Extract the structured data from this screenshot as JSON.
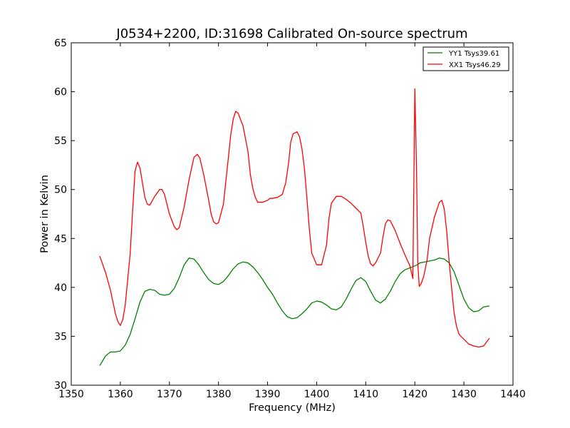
{
  "chart_data": {
    "type": "line",
    "title": "J0534+2200, ID:31698 Calibrated On-source spectrum",
    "xlabel": "Frequency (MHz)",
    "ylabel": "Power in Kelvin",
    "xlim": [
      1350,
      1440
    ],
    "ylim": [
      30,
      65
    ],
    "xticks": [
      1350,
      1360,
      1370,
      1380,
      1390,
      1400,
      1410,
      1420,
      1430,
      1440
    ],
    "yticks": [
      30,
      35,
      40,
      45,
      50,
      55,
      60,
      65
    ],
    "grid": false,
    "legend_position": "top-right",
    "series": [
      {
        "name": "YY1 Tsys39.61",
        "color": "#008000",
        "x": [
          1355.8,
          1357,
          1358,
          1359,
          1360,
          1361,
          1362,
          1363,
          1364,
          1365,
          1366,
          1367,
          1368,
          1369,
          1370,
          1371,
          1372,
          1373,
          1374,
          1375,
          1376,
          1377,
          1378,
          1379,
          1380,
          1381,
          1382,
          1383,
          1384,
          1385,
          1386,
          1387,
          1388,
          1389,
          1390,
          1391,
          1392,
          1393,
          1394,
          1395,
          1396,
          1397,
          1398,
          1399,
          1400,
          1401,
          1402,
          1403,
          1404,
          1405,
          1406,
          1407,
          1408,
          1409,
          1410,
          1411,
          1412,
          1413,
          1414,
          1415,
          1416,
          1417,
          1418,
          1419,
          1420,
          1420.5,
          1421,
          1422,
          1423,
          1424,
          1425,
          1426,
          1427,
          1428,
          1429,
          1430,
          1431,
          1432,
          1433,
          1434,
          1435.2
        ],
        "values": [
          32.0,
          33.0,
          33.4,
          33.4,
          33.5,
          34.1,
          35.2,
          36.8,
          38.5,
          39.6,
          39.8,
          39.7,
          39.3,
          39.2,
          39.3,
          39.9,
          41.0,
          42.3,
          43.0,
          42.9,
          42.3,
          41.5,
          40.8,
          40.4,
          40.3,
          40.6,
          41.2,
          41.9,
          42.4,
          42.6,
          42.5,
          42.1,
          41.5,
          40.8,
          40.0,
          39.3,
          38.4,
          37.6,
          37.0,
          36.8,
          36.9,
          37.3,
          37.8,
          38.4,
          38.6,
          38.5,
          38.2,
          37.8,
          37.7,
          38.0,
          38.8,
          39.8,
          40.7,
          41.0,
          40.6,
          39.6,
          38.7,
          38.4,
          38.8,
          39.6,
          40.6,
          41.4,
          41.8,
          42.0,
          42.2,
          42.3,
          42.5,
          42.6,
          42.7,
          42.8,
          43.0,
          42.9,
          42.5,
          41.6,
          40.2,
          38.8,
          37.9,
          37.5,
          37.6,
          38.0,
          38.1
        ]
      },
      {
        "name": "XX1 Tsys46.29",
        "color": "#ff0000",
        "x": [
          1355.8,
          1357,
          1358,
          1359,
          1359.5,
          1360,
          1360.5,
          1361,
          1362,
          1362.5,
          1363,
          1363.5,
          1364,
          1364.5,
          1365,
          1365.5,
          1366,
          1367,
          1368,
          1368.5,
          1369,
          1370,
          1371,
          1371.5,
          1372,
          1373,
          1374,
          1375,
          1375.7,
          1376.2,
          1377,
          1378,
          1378.5,
          1379,
          1379.5,
          1380,
          1381,
          1382,
          1382.5,
          1383,
          1383.5,
          1384,
          1385,
          1386,
          1386.5,
          1387,
          1387.5,
          1388,
          1389,
          1390,
          1390.5,
          1391,
          1392,
          1393,
          1393.7,
          1394.3,
          1394.7,
          1395.2,
          1396,
          1396.5,
          1397,
          1397.5,
          1398,
          1398.5,
          1399,
          1400,
          1401,
          1402,
          1402.5,
          1403,
          1404,
          1405,
          1406,
          1407,
          1408,
          1409,
          1409.5,
          1410,
          1410.5,
          1411,
          1411.5,
          1412,
          1413,
          1413.5,
          1414,
          1414.5,
          1415,
          1416,
          1417,
          1418,
          1419,
          1419.6,
          1420,
          1420.35,
          1420.6,
          1420.9,
          1421.3,
          1421.8,
          1422.5,
          1423,
          1424,
          1425,
          1425.5,
          1426,
          1426.5,
          1427,
          1427.5,
          1428,
          1428.5,
          1429,
          1430,
          1431,
          1432,
          1433,
          1434,
          1435.2
        ],
        "values": [
          43.2,
          41.5,
          39.7,
          37.3,
          36.5,
          36.1,
          36.7,
          38.2,
          43.4,
          47.8,
          51.9,
          52.8,
          52.2,
          50.7,
          49.2,
          48.5,
          48.4,
          49.3,
          50.0,
          50.0,
          49.5,
          47.5,
          46.2,
          45.9,
          46.1,
          48.2,
          51.0,
          53.3,
          53.6,
          53.2,
          51.5,
          48.9,
          47.5,
          46.7,
          46.5,
          46.6,
          48.5,
          53.2,
          55.6,
          57.2,
          58.0,
          57.8,
          56.5,
          53.9,
          51.5,
          50.1,
          49.2,
          48.7,
          48.7,
          48.9,
          49.1,
          49.1,
          49.2,
          49.5,
          50.7,
          52.8,
          54.8,
          55.7,
          55.9,
          55.4,
          54.2,
          52.2,
          49.2,
          46.0,
          43.5,
          42.3,
          42.3,
          44.3,
          47.0,
          48.6,
          49.3,
          49.3,
          49.0,
          48.6,
          48.1,
          47.6,
          46.2,
          44.6,
          43.2,
          42.4,
          42.2,
          42.5,
          43.5,
          45.1,
          46.5,
          46.9,
          46.8,
          45.8,
          44.5,
          43.3,
          42.2,
          40.9,
          60.3,
          52.0,
          42.5,
          40.1,
          40.4,
          41.1,
          42.8,
          45.0,
          47.2,
          48.7,
          48.9,
          48.0,
          45.7,
          42.6,
          39.9,
          37.4,
          36.0,
          35.2,
          34.7,
          34.2,
          34.0,
          33.9,
          34.0,
          34.8
        ]
      }
    ]
  }
}
